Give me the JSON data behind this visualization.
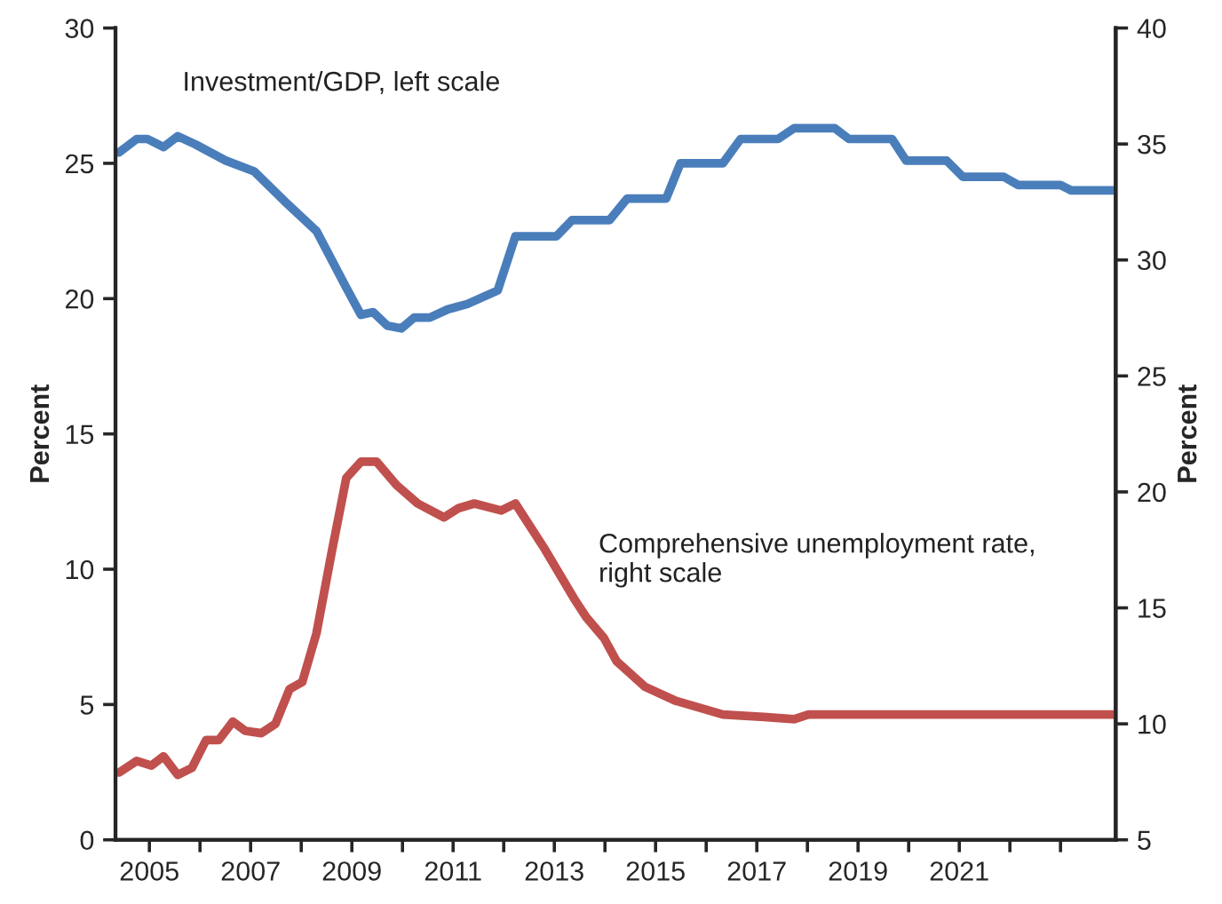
{
  "chart_data": {
    "type": "line",
    "ylabel": "Percent",
    "y2label": "Percent",
    "xlim": [
      2004.33,
      2024.09
    ],
    "xticks": [
      {
        "value": 2005,
        "label": "2005"
      },
      {
        "value": 2006,
        "label": null
      },
      {
        "value": 2007,
        "label": "2007"
      },
      {
        "value": 2008,
        "label": null
      },
      {
        "value": 2009,
        "label": "2009"
      },
      {
        "value": 2010,
        "label": null
      },
      {
        "value": 2011,
        "label": "2011"
      },
      {
        "value": 2012,
        "label": null
      },
      {
        "value": 2013,
        "label": "2013"
      },
      {
        "value": 2014,
        "label": null
      },
      {
        "value": 2015,
        "label": "2015"
      },
      {
        "value": 2016,
        "label": null
      },
      {
        "value": 2017,
        "label": "2017"
      },
      {
        "value": 2018,
        "label": null
      },
      {
        "value": 2019,
        "label": "2019"
      },
      {
        "value": 2020,
        "label": null
      },
      {
        "value": 2021,
        "label": "2021"
      },
      {
        "value": 2022,
        "label": null
      },
      {
        "value": 2023,
        "label": null
      }
    ],
    "ylim": [
      0,
      30
    ],
    "yticks": [
      0,
      5,
      10,
      15,
      20,
      25,
      30
    ],
    "y2lim": [
      5,
      40
    ],
    "y2ticks": [
      5,
      10,
      15,
      20,
      25,
      30,
      35,
      40
    ],
    "grid": false,
    "legend": false,
    "marker": "none",
    "line_style": "solid",
    "series": [
      {
        "name": "Investment/GDP, left scale",
        "color": "#4a7ebb",
        "axis": "y",
        "x": [
          2004.4,
          2004.75,
          2004.96,
          2005.28,
          2005.56,
          2005.91,
          2006.51,
          2007.07,
          2007.67,
          2008.3,
          2008.89,
          2009.18,
          2009.42,
          2009.7,
          2009.98,
          2010.23,
          2010.54,
          2010.89,
          2011.28,
          2011.88,
          2012.23,
          2013.04,
          2013.35,
          2014.09,
          2014.44,
          2015.21,
          2015.49,
          2016.33,
          2016.68,
          2017.42,
          2017.74,
          2018.54,
          2018.82,
          2019.67,
          2019.95,
          2020.75,
          2021.07,
          2021.88,
          2022.16,
          2023.0,
          2023.21,
          2024.09
        ],
        "values": [
          25.4,
          25.9,
          25.9,
          25.6,
          26.0,
          25.7,
          25.1,
          24.7,
          23.6,
          22.5,
          20.4,
          19.4,
          19.5,
          19.0,
          18.9,
          19.3,
          19.3,
          19.6,
          19.8,
          20.3,
          22.3,
          22.3,
          22.9,
          22.9,
          23.7,
          23.7,
          25.0,
          25.0,
          25.9,
          25.9,
          26.3,
          26.3,
          25.9,
          25.9,
          25.1,
          25.1,
          24.5,
          24.5,
          24.2,
          24.2,
          24.0,
          24.0
        ]
      },
      {
        "name": "Comprehensive unemployment rate, right scale",
        "color": "#c0504d",
        "axis": "y2",
        "x": [
          2004.4,
          2004.75,
          2005.04,
          2005.28,
          2005.56,
          2005.84,
          2006.12,
          2006.37,
          2006.65,
          2006.89,
          2007.21,
          2007.49,
          2007.77,
          2008.02,
          2008.3,
          2008.61,
          2008.89,
          2009.18,
          2009.49,
          2009.88,
          2010.3,
          2010.82,
          2011.11,
          2011.42,
          2011.95,
          2012.23,
          2012.82,
          2013.39,
          2013.63,
          2013.98,
          2014.23,
          2014.79,
          2015.39,
          2016.33,
          2017.14,
          2017.74,
          2018.02,
          2024.09
        ],
        "values": [
          7.9,
          8.4,
          8.2,
          8.6,
          7.8,
          8.1,
          9.3,
          9.3,
          10.1,
          9.7,
          9.6,
          10.0,
          11.5,
          11.8,
          13.9,
          17.5,
          20.6,
          21.3,
          21.3,
          20.3,
          19.5,
          18.9,
          19.3,
          19.5,
          19.2,
          19.5,
          17.5,
          15.4,
          14.6,
          13.7,
          12.7,
          11.6,
          11.0,
          10.4,
          10.3,
          10.2,
          10.4,
          10.4
        ]
      }
    ]
  }
}
